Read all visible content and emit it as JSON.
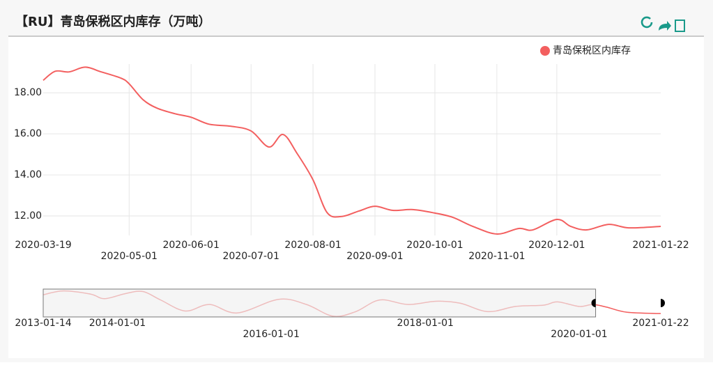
{
  "chart_data": {
    "type": "line",
    "title": "【RU】青岛保税区内库存（万吨）",
    "legend": "top-right",
    "grid": true,
    "series": [
      {
        "name": "青岛保税区内库存",
        "color": "#f35f5f",
        "values": [
          18.61,
          19.05,
          19.02,
          19.25,
          19.02,
          18.71,
          18.44,
          17.66,
          17.25,
          16.98,
          16.81,
          16.47,
          16.37,
          16.14,
          15.36,
          15.97,
          15.05,
          13.76,
          12.17,
          11.97,
          12.24,
          12.47,
          12.27,
          12.31,
          12.14,
          11.93,
          11.49,
          11.12,
          11.39,
          11.32,
          11.83,
          11.49,
          11.32,
          11.59,
          11.42,
          11.49
        ]
      }
    ],
    "x": [
      "2020-03-19",
      "2020-03-25",
      "2020-04-01",
      "2020-04-09",
      "2020-04-17",
      "2020-04-27",
      "2020-05-01",
      "2020-05-08",
      "2020-05-15",
      "2020-05-24",
      "2020-06-01",
      "2020-06-10",
      "2020-06-21",
      "2020-07-01",
      "2020-07-10",
      "2020-07-17",
      "2020-07-24",
      "2020-08-01",
      "2020-08-08",
      "2020-08-15",
      "2020-08-24",
      "2020-09-01",
      "2020-09-10",
      "2020-09-20",
      "2020-10-01",
      "2020-10-10",
      "2020-10-20",
      "2020-11-01",
      "2020-11-12",
      "2020-11-19",
      "2020-12-01",
      "2020-12-08",
      "2020-12-16",
      "2020-12-27",
      "2021-01-06",
      "2021-01-22"
    ],
    "xlim": [
      "2020-03-19",
      "2021-01-22"
    ],
    "xticks": [
      "2020-03-19",
      "2020-05-01",
      "2020-06-01",
      "2020-07-01",
      "2020-08-01",
      "2020-09-01",
      "2020-10-01",
      "2020-11-01",
      "2020-12-01",
      "2021-01-22"
    ],
    "ylim": [
      11.05,
      19.4
    ],
    "yticks": [
      {
        "value": 12,
        "label": "12.00"
      },
      {
        "value": 14,
        "label": "14.00"
      },
      {
        "value": 16,
        "label": "16.00"
      },
      {
        "value": 18,
        "label": "18.00"
      }
    ],
    "navigator": {
      "x": [
        "2013-01-14",
        "2013-04-20",
        "2013-08-27",
        "2013-11-01",
        "2014-02-10",
        "2014-05-02",
        "2014-07-25",
        "2014-11-19",
        "2015-03-14",
        "2015-07-24",
        "2016-02-05",
        "2016-06-16",
        "2016-10-20",
        "2017-02-05",
        "2017-05-30",
        "2017-10-10",
        "2018-02-20",
        "2018-06-15",
        "2018-10-25",
        "2019-03-06",
        "2019-07-16",
        "2019-09-20",
        "2020-01-01",
        "2020-03-05",
        "2020-05-10",
        "2020-08-15",
        "2021-01-22"
      ],
      "values": [
        26.1,
        29.1,
        26.6,
        23.1,
        27.1,
        28.6,
        22.1,
        13.6,
        18.6,
        12.1,
        22.6,
        18.6,
        9.6,
        13.1,
        22.1,
        18.6,
        21.1,
        19.6,
        13.1,
        17.1,
        18.1,
        20.6,
        17.1,
        18.6,
        16.6,
        12.6,
        11.6
      ],
      "xlim": [
        "2013-01-14",
        "2021-01-22"
      ],
      "xticks": [
        "2013-01-14",
        "2014-01-01",
        "2016-01-01",
        "2018-01-01",
        "2020-01-01",
        "2021-01-22"
      ],
      "ylim": [
        9,
        30.5
      ]
    }
  }
}
